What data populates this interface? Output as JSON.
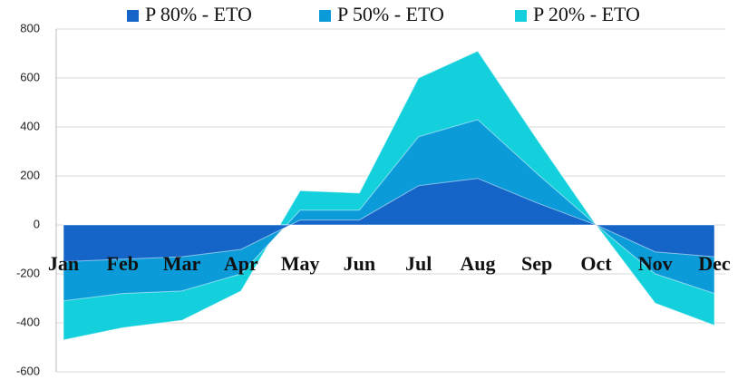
{
  "chart_data": {
    "type": "area",
    "categories": [
      "Jan",
      "Feb",
      "Mar",
      "Apr",
      "May",
      "Jun",
      "Jul",
      "Aug",
      "Sep",
      "Oct",
      "Nov",
      "Dec"
    ],
    "series": [
      {
        "name": "P 80% - ETO",
        "color": "#1565c8",
        "values": [
          -150,
          -140,
          -130,
          -100,
          20,
          20,
          160,
          190,
          90,
          0,
          -110,
          -130
        ]
      },
      {
        "name": "P 50% - ETO",
        "color": "#0b9bd9",
        "values": [
          -310,
          -280,
          -270,
          -200,
          60,
          60,
          360,
          430,
          210,
          0,
          -200,
          -280
        ]
      },
      {
        "name": "P 20% - ETO",
        "color": "#14d0dc",
        "values": [
          -470,
          -420,
          -390,
          -270,
          140,
          130,
          600,
          710,
          350,
          0,
          -320,
          -410
        ]
      }
    ],
    "ylim": [
      -600,
      800
    ],
    "yticks": [
      -600,
      -400,
      -200,
      0,
      200,
      400,
      600,
      800
    ],
    "grid": true,
    "legend": "top"
  }
}
